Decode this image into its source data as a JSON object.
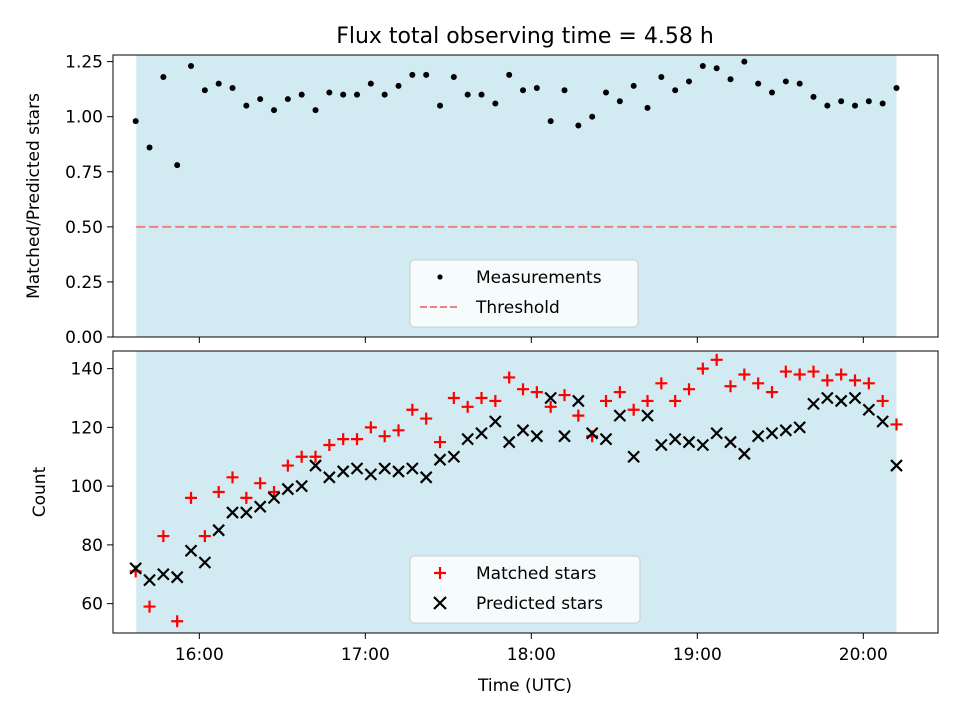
{
  "chart_data": [
    {
      "type": "scatter",
      "title": "Flux total observing time = 4.58 h",
      "ylabel": "Matched/Predicted stars",
      "xlabel": "",
      "ylim": [
        0,
        1.28
      ],
      "yticks": [
        "0.00",
        "0.25",
        "0.50",
        "0.75",
        "1.00",
        "1.25"
      ],
      "ytick_values": [
        0,
        0.25,
        0.5,
        0.75,
        1.0,
        1.25
      ],
      "xlim_hours": [
        15.48,
        20.45
      ],
      "grid": false,
      "shaded_span_hours": [
        15.62,
        20.2
      ],
      "shade_color": "#add8e6",
      "threshold": {
        "name": "Threshold",
        "value": 0.5,
        "color": "#f08080"
      },
      "series": [
        {
          "name": "Measurements",
          "marker": "dot",
          "color": "#000000",
          "x": [
            "15:37",
            "15:42",
            "15:47",
            "15:52",
            "15:57",
            "16:02",
            "16:07",
            "16:12",
            "16:17",
            "16:22",
            "16:27",
            "16:32",
            "16:37",
            "16:42",
            "16:47",
            "16:52",
            "16:57",
            "17:02",
            "17:07",
            "17:12",
            "17:17",
            "17:22",
            "17:27",
            "17:32",
            "17:37",
            "17:42",
            "17:47",
            "17:52",
            "17:57",
            "18:02",
            "18:07",
            "18:12",
            "18:17",
            "18:22",
            "18:27",
            "18:32",
            "18:37",
            "18:42",
            "18:47",
            "18:52",
            "18:57",
            "19:02",
            "19:07",
            "19:12",
            "19:17",
            "19:22",
            "19:27",
            "19:32",
            "19:37",
            "19:42",
            "19:47",
            "19:52",
            "19:57",
            "20:02",
            "20:07",
            "20:12"
          ],
          "y": [
            0.98,
            0.86,
            1.18,
            0.78,
            1.23,
            1.12,
            1.15,
            1.13,
            1.05,
            1.08,
            1.03,
            1.08,
            1.1,
            1.03,
            1.11,
            1.1,
            1.1,
            1.15,
            1.1,
            1.14,
            1.19,
            1.19,
            1.05,
            1.18,
            1.1,
            1.1,
            1.06,
            1.19,
            1.12,
            1.13,
            0.98,
            1.12,
            0.96,
            1.0,
            1.11,
            1.07,
            1.14,
            1.04,
            1.18,
            1.12,
            1.16,
            1.23,
            1.22,
            1.17,
            1.25,
            1.15,
            1.11,
            1.16,
            1.15,
            1.09,
            1.05,
            1.07,
            1.05,
            1.07,
            1.06,
            1.13
          ]
        }
      ],
      "legend": {
        "placement": "lower center",
        "entries": [
          "Measurements",
          "Threshold"
        ]
      }
    },
    {
      "type": "scatter",
      "title": "",
      "ylabel": "Count",
      "xlabel": "Time (UTC)",
      "ylim": [
        50,
        146
      ],
      "yticks": [
        "60",
        "80",
        "100",
        "120",
        "140"
      ],
      "ytick_values": [
        60,
        80,
        100,
        120,
        140
      ],
      "xlim_hours": [
        15.48,
        20.45
      ],
      "xticks": [
        "16:00",
        "17:00",
        "18:00",
        "19:00",
        "20:00"
      ],
      "xtick_hours": [
        16,
        17,
        18,
        19,
        20
      ],
      "grid": false,
      "shaded_span_hours": [
        15.62,
        20.2
      ],
      "shade_color": "#add8e6",
      "x": [
        "15:37",
        "15:42",
        "15:47",
        "15:52",
        "15:57",
        "16:02",
        "16:07",
        "16:12",
        "16:17",
        "16:22",
        "16:27",
        "16:32",
        "16:37",
        "16:42",
        "16:47",
        "16:52",
        "16:57",
        "17:02",
        "17:07",
        "17:12",
        "17:17",
        "17:22",
        "17:27",
        "17:32",
        "17:37",
        "17:42",
        "17:47",
        "17:52",
        "17:57",
        "18:02",
        "18:07",
        "18:12",
        "18:17",
        "18:22",
        "18:27",
        "18:32",
        "18:37",
        "18:42",
        "18:47",
        "18:52",
        "18:57",
        "19:02",
        "19:07",
        "19:12",
        "19:17",
        "19:22",
        "19:27",
        "19:32",
        "19:37",
        "19:42",
        "19:47",
        "19:52",
        "19:57",
        "20:02",
        "20:07",
        "20:12"
      ],
      "series": [
        {
          "name": "Matched stars",
          "marker": "plus",
          "color": "#ff0000",
          "values": [
            71,
            59,
            83,
            54,
            96,
            83,
            98,
            103,
            96,
            101,
            98,
            107,
            110,
            110,
            114,
            116,
            116,
            120,
            117,
            119,
            126,
            123,
            115,
            130,
            127,
            130,
            129,
            137,
            133,
            132,
            127,
            131,
            124,
            117,
            129,
            132,
            126,
            129,
            135,
            129,
            133,
            140,
            143,
            134,
            138,
            135,
            132,
            139,
            138,
            139,
            136,
            138,
            136,
            135,
            129,
            121
          ]
        },
        {
          "name": "Predicted stars",
          "marker": "x",
          "color": "#000000",
          "values": [
            72,
            68,
            70,
            69,
            78,
            74,
            85,
            91,
            91,
            93,
            96,
            99,
            100,
            107,
            103,
            105,
            106,
            104,
            106,
            105,
            106,
            103,
            109,
            110,
            116,
            118,
            122,
            115,
            119,
            117,
            130,
            117,
            129,
            118,
            116,
            124,
            110,
            124,
            114,
            116,
            115,
            114,
            118,
            115,
            111,
            117,
            118,
            119,
            120,
            128,
            130,
            129,
            130,
            126,
            122,
            107
          ]
        }
      ],
      "legend": {
        "placement": "lower center",
        "entries": [
          "Matched stars",
          "Predicted stars"
        ]
      }
    }
  ]
}
